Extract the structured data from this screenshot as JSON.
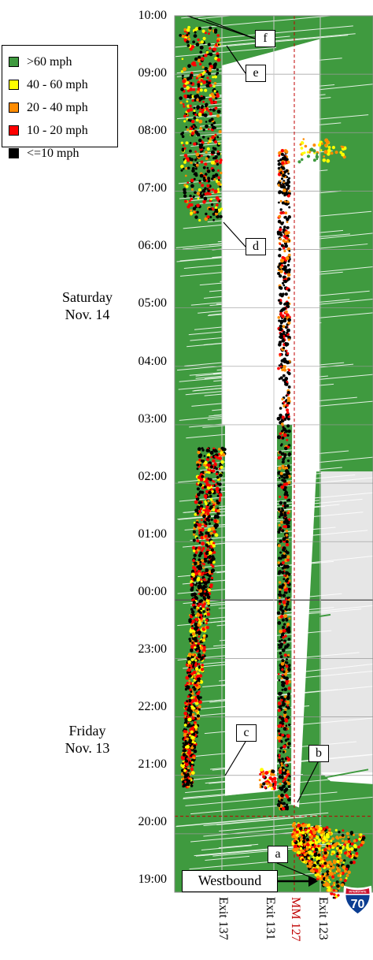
{
  "chart_data": {
    "type": "scatter",
    "title": "",
    "xlabel": "",
    "ylabel": "",
    "y_axis": {
      "ticks": [
        "19:00",
        "20:00",
        "21:00",
        "22:00",
        "23:00",
        "00:00",
        "01:00",
        "02:00",
        "03:00",
        "04:00",
        "05:00",
        "06:00",
        "07:00",
        "08:00",
        "09:00",
        "10:00"
      ]
    },
    "day_labels": [
      {
        "line1": "Saturday",
        "line2": "Nov. 14"
      },
      {
        "line1": "Friday",
        "line2": "Nov. 13"
      }
    ],
    "x_axis": {
      "ticks": [
        "Exit 137",
        "Exit 131",
        "MM 127",
        "Exit 123"
      ],
      "highlight": "MM 127",
      "highlight_color": "#c00000"
    },
    "legend": [
      {
        "label": ">60 mph",
        "color": "#3f9a3f"
      },
      {
        "label": "40 - 60 mph",
        "color": "#ffff00"
      },
      {
        "label": "20 - 40 mph",
        "color": "#ff8c00"
      },
      {
        "label": "10 - 20 mph",
        "color": "#ff0000"
      },
      {
        "label": "<=10 mph",
        "color": "#000000"
      }
    ],
    "annotations": [
      "a",
      "b",
      "c",
      "d",
      "e",
      "f"
    ],
    "direction_label": "Westbound",
    "shield_number": "70",
    "shield_banner": "INTERSTATE",
    "legend_placement": "top-left",
    "grid": true
  }
}
